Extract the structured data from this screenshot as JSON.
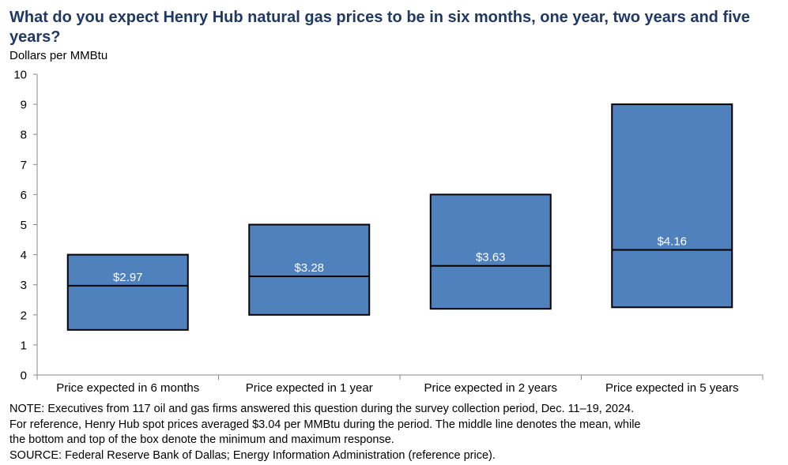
{
  "title": "What do you expect Henry Hub natural gas prices to be in six months, one year, two years and five years?",
  "unit_label": "Dollars per MMBtu",
  "notes": [
    "NOTE: Executives from 117 oil and gas firms answered this question during the survey collection period, Dec. 11–19, 2024.",
    "For reference, Henry Hub spot prices averaged $3.04 per MMBtu during the period. The middle line denotes the mean, while",
    "the bottom and top of the box denote the minimum and maximum response.",
    "SOURCE: Federal Reserve Bank of Dallas; Energy Information Administration (reference price)."
  ],
  "colors": {
    "box_fill": "#4f81bd",
    "box_stroke": "#000000",
    "title": "#1f3864",
    "label": "#ffffff"
  },
  "chart_data": {
    "type": "box",
    "ylim": [
      0,
      10
    ],
    "yticks": [
      "0",
      "1",
      "2",
      "3",
      "4",
      "5",
      "6",
      "7",
      "8",
      "9",
      "10"
    ],
    "categories": [
      "Price expected in 6 months",
      "Price expected in 1 year",
      "Price expected in 2 years",
      "Price expected in 5 years"
    ],
    "series": [
      {
        "min": 1.5,
        "max": 4.0,
        "mean": 2.97,
        "label": "$2.97"
      },
      {
        "min": 2.0,
        "max": 5.0,
        "mean": 3.28,
        "label": "$3.28"
      },
      {
        "min": 2.2,
        "max": 6.0,
        "mean": 3.63,
        "label": "$3.63"
      },
      {
        "min": 2.25,
        "max": 9.0,
        "mean": 4.16,
        "label": "$4.16"
      }
    ],
    "grid": false,
    "legend": "none"
  }
}
